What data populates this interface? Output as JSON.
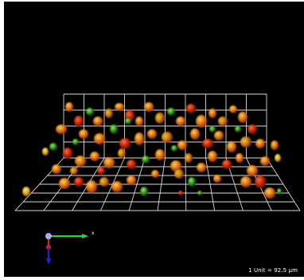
{
  "scale_bar": {
    "label": "1 Unit = 92.5 µm"
  },
  "axes": {
    "x_label": "x"
  },
  "colors": {
    "background": "#000000",
    "grid": "#d8d8d8",
    "x_axis": "#22dd22",
    "y_axis": "#dd2222",
    "z_axis": "#2222dd",
    "axis_origin": "#aaaaee",
    "cell_red": "#e03010",
    "cell_orange": "#f08a18",
    "cell_yellow": "#f0c020",
    "cell_green": "#3aa020"
  }
}
